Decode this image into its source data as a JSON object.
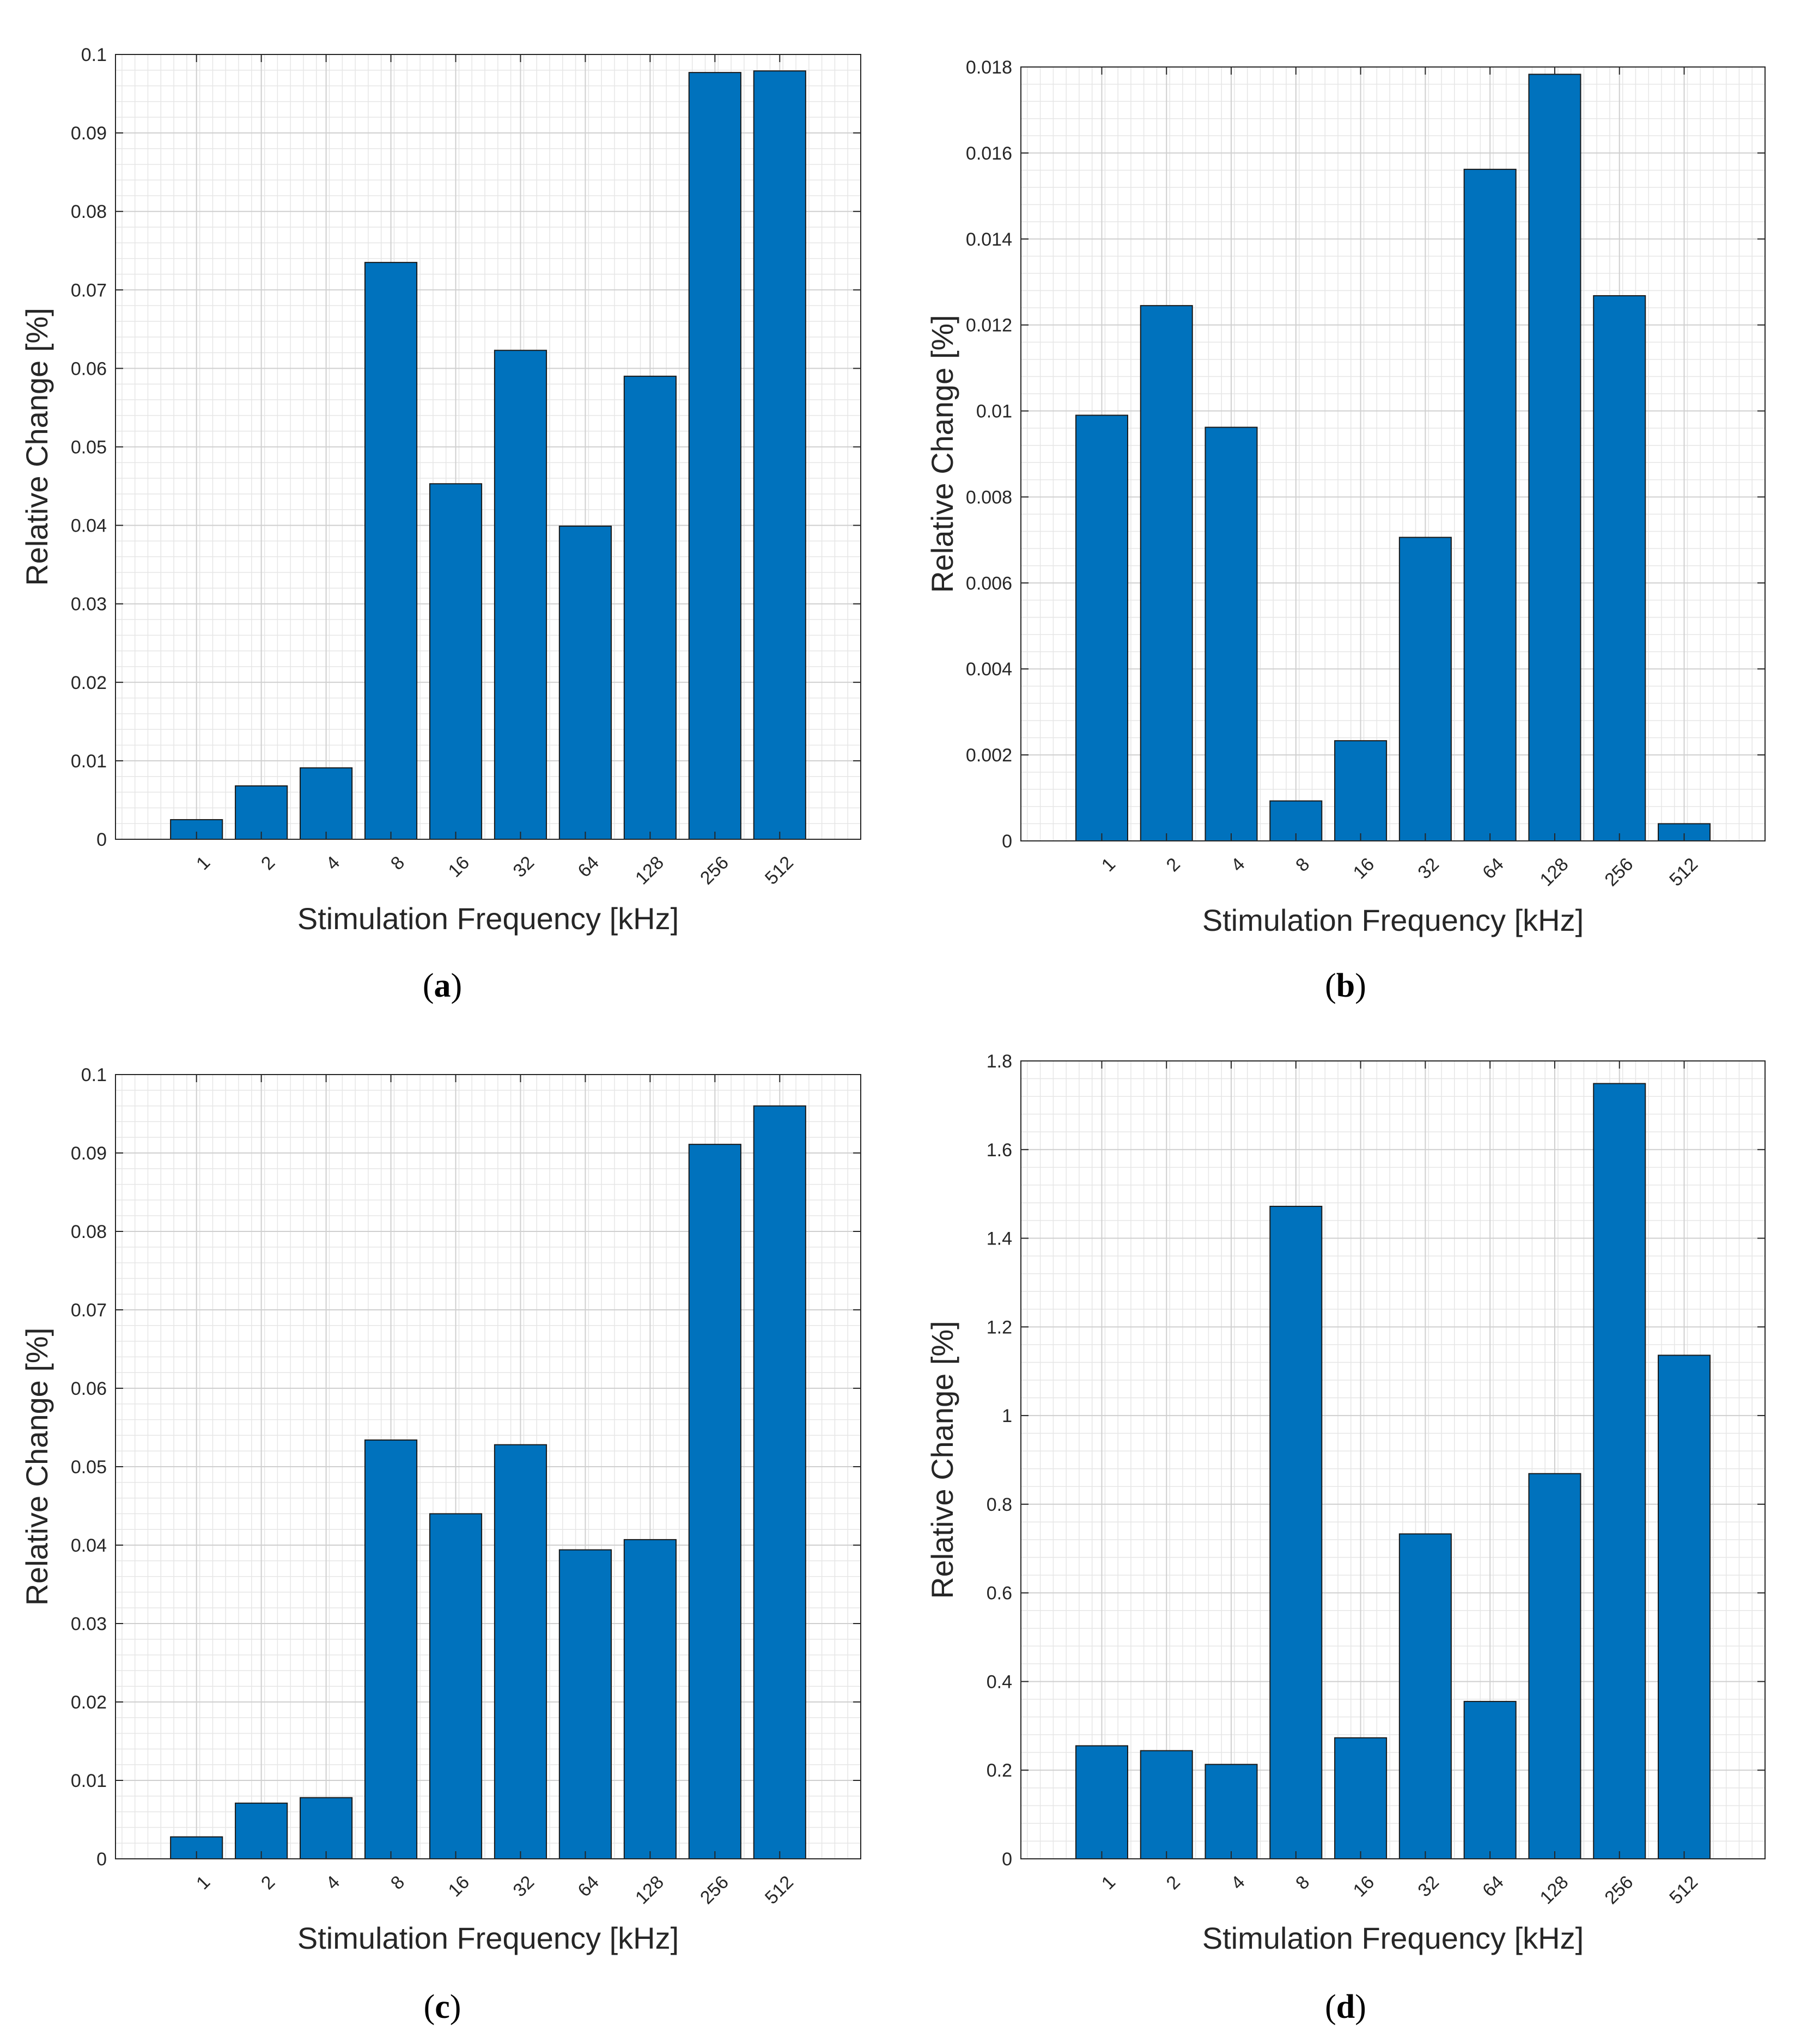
{
  "figure": {
    "panels": [
      "a",
      "b",
      "c",
      "d"
    ]
  },
  "chart_data": [
    {
      "panel": "a",
      "caption_letter": "a",
      "type": "bar",
      "categories": [
        "1",
        "2",
        "4",
        "8",
        "16",
        "32",
        "64",
        "128",
        "256",
        "512"
      ],
      "values": [
        0.0025,
        0.0068,
        0.0091,
        0.0735,
        0.0453,
        0.0623,
        0.0399,
        0.059,
        0.0977,
        0.0979
      ],
      "xlabel": "Stimulation Frequency [kHz]",
      "ylabel": "Relative Change [%]",
      "ylim": [
        0,
        0.1
      ],
      "yticks": [
        "0",
        "0.01",
        "0.02",
        "0.03",
        "0.04",
        "0.05",
        "0.06",
        "0.07",
        "0.08",
        "0.09",
        "0.1"
      ],
      "grid": true,
      "bar_color": "#0072BD"
    },
    {
      "panel": "b",
      "caption_letter": "b",
      "type": "bar",
      "categories": [
        "1",
        "2",
        "4",
        "8",
        "16",
        "32",
        "64",
        "128",
        "256",
        "512"
      ],
      "values": [
        0.0099,
        0.01245,
        0.00962,
        0.00093,
        0.00233,
        0.00706,
        0.01562,
        0.01783,
        0.01268,
        0.0004
      ],
      "xlabel": "Stimulation Frequency [kHz]",
      "ylabel": "Relative Change [%]",
      "ylim": [
        0,
        0.018
      ],
      "yticks": [
        "0",
        "0.002",
        "0.004",
        "0.006",
        "0.008",
        "0.01",
        "0.012",
        "0.014",
        "0.016",
        "0.018"
      ],
      "grid": true,
      "bar_color": "#0072BD"
    },
    {
      "panel": "c",
      "caption_letter": "c",
      "type": "bar",
      "categories": [
        "1",
        "2",
        "4",
        "8",
        "16",
        "32",
        "64",
        "128",
        "256",
        "512"
      ],
      "values": [
        0.0028,
        0.0071,
        0.0078,
        0.0534,
        0.044,
        0.0528,
        0.0394,
        0.0407,
        0.0911,
        0.096
      ],
      "xlabel": "Stimulation Frequency [kHz]",
      "ylabel": "Relative Change [%]",
      "ylim": [
        0,
        0.1
      ],
      "yticks": [
        "0",
        "0.01",
        "0.02",
        "0.03",
        "0.04",
        "0.05",
        "0.06",
        "0.07",
        "0.08",
        "0.09",
        "0.1"
      ],
      "grid": true,
      "bar_color": "#0072BD"
    },
    {
      "panel": "d",
      "caption_letter": "d",
      "type": "bar",
      "categories": [
        "1",
        "2",
        "4",
        "8",
        "16",
        "32",
        "64",
        "128",
        "256",
        "512"
      ],
      "values": [
        0.255,
        0.244,
        0.213,
        1.472,
        0.273,
        0.733,
        0.355,
        0.869,
        1.749,
        1.136
      ],
      "xlabel": "Stimulation Frequency [kHz]",
      "ylabel": "Relative Change [%]",
      "ylim": [
        0,
        1.8
      ],
      "yticks": [
        "0",
        "0.2",
        "0.4",
        "0.6",
        "0.8",
        "1",
        "1.2",
        "1.4",
        "1.6",
        "1.8"
      ],
      "grid": true,
      "bar_color": "#0072BD"
    }
  ]
}
